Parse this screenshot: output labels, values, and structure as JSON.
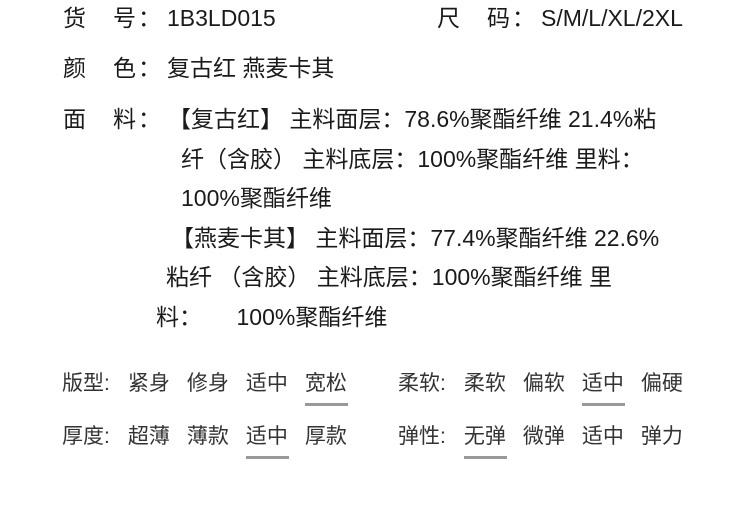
{
  "page": {
    "background": "#ffffff",
    "text_color": "#1a1a1a",
    "underline_color": "#999999"
  },
  "info": {
    "item_no": {
      "label": "货　号：",
      "value": "1B3LD015"
    },
    "size": {
      "label": "尺　码：",
      "value": "S/M/L/XL/2XL"
    },
    "color": {
      "label": "颜　色：",
      "value": "复古红 燕麦卡其"
    },
    "fabric": {
      "label": "面　料：",
      "lines": [
        "【复古红】 主料面层：78.6%聚酯纤维 21.4%粘",
        "纤（含胶） 主料底层：100%聚酯纤维 里料：",
        "100%聚酯纤维",
        "【燕麦卡其】 主料面层：77.4%聚酯纤维 22.6%",
        "粘纤 （含胶） 主料底层：100%聚酯纤维 里",
        "料：　　100%聚酯纤维"
      ]
    }
  },
  "attributes": [
    {
      "name": "fit",
      "label": "版型:",
      "options": [
        "紧身",
        "修身",
        "适中",
        "宽松"
      ],
      "selected": "宽松",
      "selected_index": 3
    },
    {
      "name": "softness",
      "label": "柔软:",
      "options": [
        "柔软",
        "偏软",
        "适中",
        "偏硬"
      ],
      "selected": "适中",
      "selected_index": 2
    },
    {
      "name": "thickness",
      "label": "厚度:",
      "options": [
        "超薄",
        "薄款",
        "适中",
        "厚款"
      ],
      "selected": "适中",
      "selected_index": 2
    },
    {
      "name": "elasticity",
      "label": "弹性:",
      "options": [
        "无弹",
        "微弹",
        "适中",
        "弹力"
      ],
      "selected": "无弹",
      "selected_index": 0
    }
  ]
}
